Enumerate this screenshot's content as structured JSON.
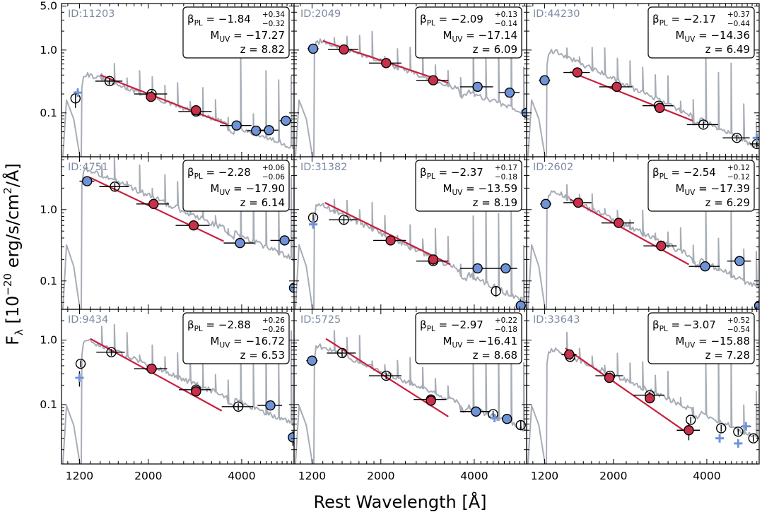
{
  "chart_data": {
    "type": "scatter",
    "xlabel": "Rest Wavelength  [Å]",
    "ylabel": "F",
    "ylabel_sub": "λ",
    "ylabel_units_pre": " [10",
    "ylabel_exp": "−20",
    "ylabel_units_post": " erg/s/cm",
    "ylabel_exp2": "2",
    "ylabel_tail": "/Å]",
    "xscale": "log",
    "yscale": "log",
    "xlim": [
      1050,
      5900
    ],
    "x_ticks": [
      1200,
      2000,
      4000
    ],
    "x_tick_labels": [
      "1200",
      "2000",
      "4000"
    ],
    "colors": {
      "photometry": "#6f93d6",
      "photometry_upper": "#ffffff",
      "fit_points": "#c9304a",
      "fit_line": "#c91f3e",
      "model_spectrum": "#a7adb6",
      "id_text": "#7d8ba3",
      "frame": "#000000"
    },
    "beta_symbol": "β",
    "beta_sub": "PL",
    "muv_symbol": "M",
    "muv_sub": "UV",
    "z_symbol": "z",
    "panels": [
      {
        "id": "ID:11203",
        "beta": "−1.84",
        "beta_up": "+0.34",
        "beta_lo": "−0.32",
        "muv": "−17.27",
        "z": "8.82",
        "ylim": [
          0.02,
          5.5
        ],
        "y_ticks": [
          0.1,
          1.0,
          5.0
        ],
        "y_tick_labels": [
          "0.1",
          "1.0",
          "5.0"
        ],
        "spec_peak": [
          1260,
          0.42
        ],
        "spec_end": [
          5900,
          0.028
        ],
        "break": 1216,
        "fit_line": {
          "x": [
            1400,
            3600
          ],
          "y": [
            0.4,
            0.065
          ]
        },
        "points": [
          {
            "x": 1165,
            "y": 0.17,
            "kind": "open",
            "lam": 1200,
            "ferr": 0.05
          },
          {
            "x": 1185,
            "y": 0.21,
            "kind": "cross"
          },
          {
            "x": 1500,
            "y": 0.32,
            "kind": "open",
            "xerr": 150
          },
          {
            "x": 2050,
            "y": 0.2,
            "kind": "open",
            "xerr": 250
          },
          {
            "x": 2040,
            "y": 0.18,
            "kind": "red"
          },
          {
            "x": 2850,
            "y": 0.105,
            "kind": "open",
            "xerr": 350
          },
          {
            "x": 2850,
            "y": 0.11,
            "kind": "red"
          },
          {
            "x": 3850,
            "y": 0.063,
            "kind": "blue",
            "xerr": 450
          },
          {
            "x": 4450,
            "y": 0.052,
            "kind": "blue",
            "xerr": 300
          },
          {
            "x": 4900,
            "y": 0.053,
            "kind": "blue",
            "xerr": 350
          },
          {
            "x": 5550,
            "y": 0.075,
            "kind": "blue",
            "xerr": 250
          }
        ]
      },
      {
        "id": "ID:2049",
        "beta": "−2.09",
        "beta_up": "+0.13",
        "beta_lo": "−0.14",
        "muv": "−17.14",
        "z": "6.09",
        "ylim": [
          0.02,
          5.5
        ],
        "y_ticks": [
          0.1,
          1.0,
          5.0
        ],
        "y_tick_labels": [
          "0.1",
          "1.0",
          "5.0"
        ],
        "spec_peak": [
          1300,
          1.4
        ],
        "spec_end": [
          5900,
          0.1
        ],
        "break": 1216,
        "fit_line": {
          "x": [
            1300,
            3300
          ],
          "y": [
            1.4,
            0.3
          ]
        },
        "points": [
          {
            "x": 1210,
            "y": 1.05,
            "kind": "blue",
            "xerr": 50
          },
          {
            "x": 1520,
            "y": 1.02,
            "kind": "red",
            "xerr": 170
          },
          {
            "x": 2080,
            "y": 0.62,
            "kind": "red",
            "xerr": 250
          },
          {
            "x": 2950,
            "y": 0.33,
            "kind": "red",
            "xerr": 350
          },
          {
            "x": 4100,
            "y": 0.26,
            "kind": "blue",
            "xerr": 500
          },
          {
            "x": 5200,
            "y": 0.21,
            "kind": "blue",
            "xerr": 400
          },
          {
            "x": 5900,
            "y": 0.1,
            "kind": "blue"
          }
        ]
      },
      {
        "id": "ID:44230",
        "beta": "−2.17",
        "beta_up": "+0.37",
        "beta_lo": "−0.44",
        "muv": "−14.36",
        "z": "6.49",
        "ylim": [
          0.02,
          5.5
        ],
        "y_ticks": [
          0.1,
          1.0,
          5.0
        ],
        "y_tick_labels": [
          "0.1",
          "1.0",
          "5.0"
        ],
        "spec_peak": [
          1300,
          0.95
        ],
        "spec_end": [
          5900,
          0.028
        ],
        "break": 1216,
        "fit_line": {
          "x": [
            1450,
            3600
          ],
          "y": [
            0.45,
            0.075
          ]
        },
        "points": [
          {
            "x": 1200,
            "y": 0.33,
            "kind": "blue",
            "xerr": 50
          },
          {
            "x": 1530,
            "y": 0.44,
            "kind": "red",
            "xerr": 150
          },
          {
            "x": 2050,
            "y": 0.26,
            "kind": "red",
            "xerr": 250
          },
          {
            "x": 2800,
            "y": 0.13,
            "kind": "open",
            "xerr": 320
          },
          {
            "x": 2820,
            "y": 0.12,
            "kind": "red"
          },
          {
            "x": 3900,
            "y": 0.065,
            "kind": "open",
            "xerr": 450
          },
          {
            "x": 5000,
            "y": 0.04,
            "kind": "open",
            "xerr": 500
          },
          {
            "x": 5800,
            "y": 0.032,
            "kind": "open",
            "xerr": 300
          },
          {
            "x": 5800,
            "y": 0.04,
            "kind": "cross"
          }
        ]
      },
      {
        "id": "ID:4751",
        "beta": "−2.28",
        "beta_up": "+0.06",
        "beta_lo": "−0.06",
        "muv": "−17.90",
        "z": "6.14",
        "ylim": [
          0.04,
          5.5
        ],
        "y_ticks": [
          0.1,
          1.0
        ],
        "y_tick_labels": [
          "0.1",
          "1.0"
        ],
        "spec_peak": [
          1300,
          3.6
        ],
        "spec_end": [
          5900,
          0.2
        ],
        "break": 1216,
        "fit_line": {
          "x": [
            1300,
            3500
          ],
          "y": [
            2.8,
            0.36
          ]
        },
        "points": [
          {
            "x": 1270,
            "y": 2.5,
            "kind": "blue",
            "xerr": 70
          },
          {
            "x": 1560,
            "y": 2.1,
            "kind": "open",
            "xerr": 170
          },
          {
            "x": 2080,
            "y": 1.2,
            "kind": "red",
            "xerr": 250
          },
          {
            "x": 2800,
            "y": 0.6,
            "kind": "red",
            "xerr": 350
          },
          {
            "x": 3950,
            "y": 0.34,
            "kind": "blue",
            "xerr": 450
          },
          {
            "x": 5500,
            "y": 0.37,
            "kind": "blue",
            "xerr": 550
          },
          {
            "x": 5900,
            "y": 0.08,
            "kind": "blue"
          }
        ]
      },
      {
        "id": "ID:31382",
        "beta": "−2.37",
        "beta_up": "+0.17",
        "beta_lo": "−0.18",
        "muv": "−13.59",
        "z": "8.19",
        "ylim": [
          0.04,
          5.5
        ],
        "y_ticks": [
          0.1,
          1.0
        ],
        "y_tick_labels": [
          "0.1",
          "1.0"
        ],
        "spec_peak": [
          1300,
          1.15
        ],
        "spec_end": [
          5900,
          0.05
        ],
        "break": 1216,
        "fit_line": {
          "x": [
            1320,
            3350
          ],
          "y": [
            1.25,
            0.17
          ]
        },
        "points": [
          {
            "x": 1210,
            "y": 0.77,
            "kind": "open"
          },
          {
            "x": 1210,
            "y": 0.62,
            "kind": "cross"
          },
          {
            "x": 1520,
            "y": 0.72,
            "kind": "open",
            "xerr": 160
          },
          {
            "x": 2150,
            "y": 0.37,
            "kind": "red",
            "xerr": 260
          },
          {
            "x": 2950,
            "y": 0.19,
            "kind": "open",
            "xerr": 350
          },
          {
            "x": 2950,
            "y": 0.2,
            "kind": "red"
          },
          {
            "x": 4100,
            "y": 0.15,
            "kind": "blue",
            "xerr": 500
          },
          {
            "x": 4700,
            "y": 0.072,
            "kind": "open",
            "ferr": 0.012
          },
          {
            "x": 5050,
            "y": 0.15,
            "kind": "blue",
            "xerr": 450
          },
          {
            "x": 5650,
            "y": 0.045,
            "kind": "blue",
            "ferr": 0.01
          }
        ]
      },
      {
        "id": "ID:2602",
        "beta": "−2.54",
        "beta_up": "+0.12",
        "beta_lo": "−0.12",
        "muv": "−17.39",
        "z": "6.29",
        "ylim": [
          0.04,
          5.5
        ],
        "y_ticks": [
          0.1,
          1.0
        ],
        "y_tick_labels": [
          "0.1",
          "1.0"
        ],
        "spec_peak": [
          1300,
          1.75
        ],
        "spec_end": [
          5900,
          0.08
        ],
        "break": 1216,
        "fit_line": {
          "x": [
            1450,
            3500
          ],
          "y": [
            1.4,
            0.17
          ]
        },
        "points": [
          {
            "x": 1210,
            "y": 1.2,
            "kind": "blue",
            "xerr": 50
          },
          {
            "x": 1540,
            "y": 1.25,
            "kind": "red",
            "xerr": 160
          },
          {
            "x": 2080,
            "y": 0.65,
            "kind": "red",
            "xerr": 250
          },
          {
            "x": 2850,
            "y": 0.31,
            "kind": "red",
            "xerr": 350
          },
          {
            "x": 3950,
            "y": 0.16,
            "kind": "blue",
            "xerr": 450
          },
          {
            "x": 5100,
            "y": 0.19,
            "kind": "blue",
            "xerr": 450
          },
          {
            "x": 5900,
            "y": 0.045,
            "kind": "blue"
          }
        ]
      },
      {
        "id": "ID:9434",
        "beta": "−2.88",
        "beta_up": "+0.26",
        "beta_lo": "−0.26",
        "muv": "−16.72",
        "z": "6.53",
        "ylim": [
          0.012,
          3.0
        ],
        "y_ticks": [
          0.1,
          1.0
        ],
        "y_tick_labels": [
          "0.1",
          "1.0"
        ],
        "spec_peak": [
          1300,
          0.95
        ],
        "spec_end": [
          5900,
          0.05
        ],
        "break": 1216,
        "fit_line": {
          "x": [
            1300,
            3450
          ],
          "y": [
            1.05,
            0.08
          ]
        },
        "points": [
          {
            "x": 1210,
            "y": 0.43,
            "kind": "open"
          },
          {
            "x": 1200,
            "y": 0.26,
            "kind": "cross",
            "ferr": 0.07
          },
          {
            "x": 1520,
            "y": 0.65,
            "kind": "open",
            "xerr": 160
          },
          {
            "x": 2050,
            "y": 0.36,
            "kind": "red",
            "xerr": 250
          },
          {
            "x": 2850,
            "y": 0.17,
            "kind": "open",
            "xerr": 340
          },
          {
            "x": 2850,
            "y": 0.16,
            "kind": "red"
          },
          {
            "x": 3900,
            "y": 0.093,
            "kind": "open",
            "xerr": 450
          },
          {
            "x": 4950,
            "y": 0.097,
            "kind": "blue",
            "xerr": 450
          },
          {
            "x": 5850,
            "y": 0.031,
            "kind": "blue",
            "ferr": 0.008
          }
        ]
      },
      {
        "id": "ID:5725",
        "beta": "−2.97",
        "beta_up": "+0.22",
        "beta_lo": "−0.18",
        "muv": "−16.41",
        "z": "8.68",
        "ylim": [
          0.012,
          3.0
        ],
        "y_ticks": [
          0.1,
          1.0
        ],
        "y_tick_labels": [
          "0.1",
          "1.0"
        ],
        "spec_peak": [
          1280,
          0.8
        ],
        "spec_end": [
          5900,
          0.04
        ],
        "break": 1216,
        "fit_line": {
          "x": [
            1330,
            3300
          ],
          "y": [
            1.05,
            0.065
          ]
        },
        "points": [
          {
            "x": 1200,
            "y": 0.48,
            "kind": "blue",
            "xerr": 50
          },
          {
            "x": 1500,
            "y": 0.63,
            "kind": "open",
            "xerr": 160
          },
          {
            "x": 2080,
            "y": 0.28,
            "kind": "open",
            "xerr": 250
          },
          {
            "x": 2900,
            "y": 0.12,
            "kind": "open",
            "xerr": 350
          },
          {
            "x": 2900,
            "y": 0.115,
            "kind": "red"
          },
          {
            "x": 4050,
            "y": 0.078,
            "kind": "blue",
            "xerr": 450
          },
          {
            "x": 4600,
            "y": 0.071,
            "kind": "open"
          },
          {
            "x": 4650,
            "y": 0.062,
            "kind": "cross"
          },
          {
            "x": 5100,
            "y": 0.06,
            "kind": "blue"
          },
          {
            "x": 5650,
            "y": 0.048,
            "kind": "open",
            "ferr": 0.008
          }
        ]
      },
      {
        "id": "ID:33643",
        "beta": "−3.07",
        "beta_up": "+0.52",
        "beta_lo": "−0.54",
        "muv": "−15.88",
        "z": "7.28",
        "ylim": [
          0.012,
          3.0
        ],
        "y_ticks": [
          0.1,
          1.0
        ],
        "y_tick_labels": [
          "0.1",
          "1.0"
        ],
        "spec_peak": [
          1280,
          0.72
        ],
        "spec_end": [
          5900,
          0.03
        ],
        "break": 1216,
        "fit_line": {
          "x": [
            1400,
            3500
          ],
          "y": [
            0.75,
            0.035
          ]
        },
        "points": [
          {
            "x": 1450,
            "y": 0.55,
            "kind": "open"
          },
          {
            "x": 1440,
            "y": 0.6,
            "kind": "red",
            "xerr": 80
          },
          {
            "x": 1950,
            "y": 0.28,
            "kind": "open",
            "xerr": 200
          },
          {
            "x": 1940,
            "y": 0.26,
            "kind": "red"
          },
          {
            "x": 2620,
            "y": 0.14,
            "kind": "open",
            "xerr": 300
          },
          {
            "x": 2620,
            "y": 0.125,
            "kind": "red"
          },
          {
            "x": 3550,
            "y": 0.058,
            "kind": "open"
          },
          {
            "x": 3500,
            "y": 0.04,
            "kind": "red",
            "xerr": 300,
            "ferr": 0.012
          },
          {
            "x": 4450,
            "y": 0.043,
            "kind": "open"
          },
          {
            "x": 4400,
            "y": 0.03,
            "kind": "cross"
          },
          {
            "x": 5050,
            "y": 0.038,
            "kind": "open"
          },
          {
            "x": 5050,
            "y": 0.025,
            "kind": "cross"
          },
          {
            "x": 5350,
            "y": 0.046,
            "kind": "cross",
            "xerr": 200
          },
          {
            "x": 5650,
            "y": 0.03,
            "kind": "open"
          }
        ]
      }
    ]
  }
}
